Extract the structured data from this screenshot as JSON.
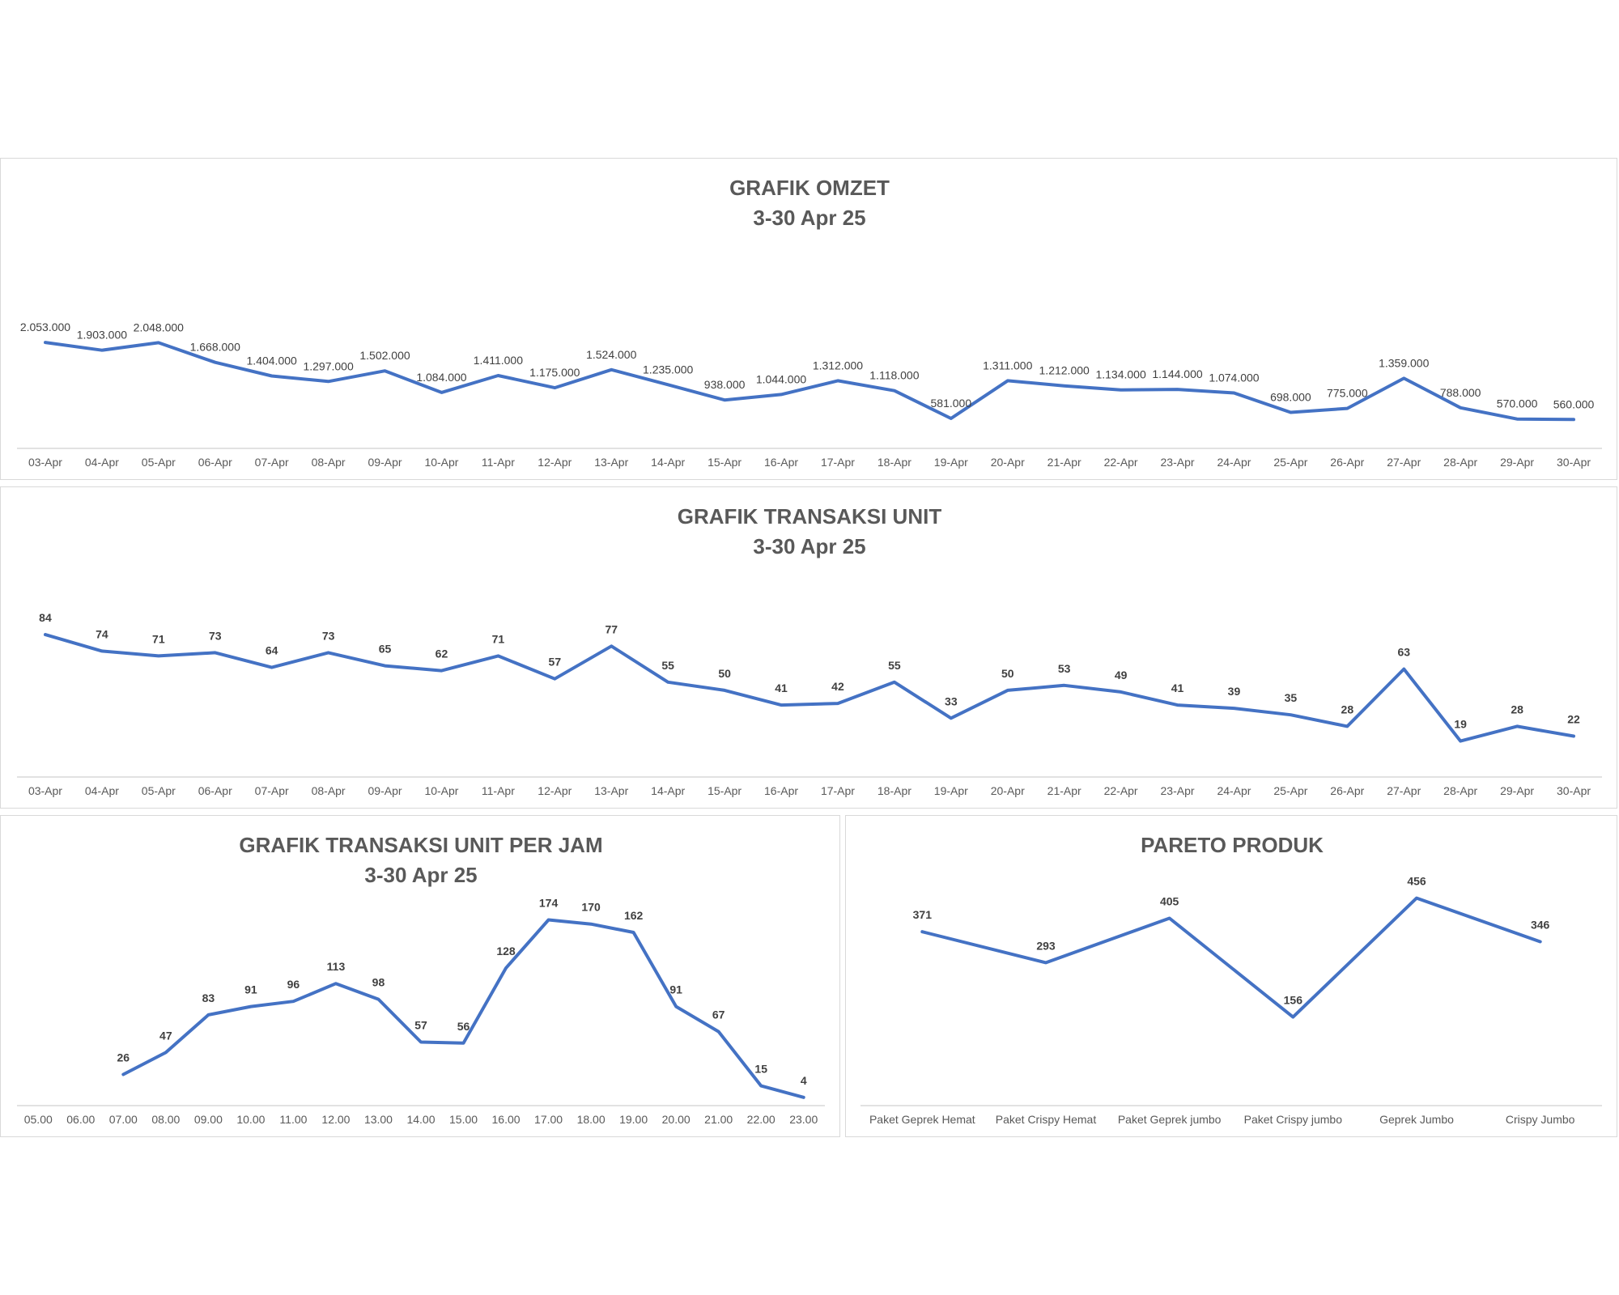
{
  "chart_data": [
    {
      "id": "omzet",
      "type": "line",
      "title": "GRAFIK OMZET",
      "subtitle": "3-30 Apr 25",
      "categories": [
        "03-Apr",
        "04-Apr",
        "05-Apr",
        "06-Apr",
        "07-Apr",
        "08-Apr",
        "09-Apr",
        "10-Apr",
        "11-Apr",
        "12-Apr",
        "13-Apr",
        "14-Apr",
        "15-Apr",
        "16-Apr",
        "17-Apr",
        "18-Apr",
        "19-Apr",
        "20-Apr",
        "21-Apr",
        "22-Apr",
        "23-Apr",
        "24-Apr",
        "25-Apr",
        "26-Apr",
        "27-Apr",
        "28-Apr",
        "29-Apr",
        "30-Apr"
      ],
      "values": [
        2053000,
        1903000,
        2048000,
        1668000,
        1404000,
        1297000,
        1502000,
        1084000,
        1411000,
        1175000,
        1524000,
        1235000,
        938000,
        1044000,
        1312000,
        1118000,
        581000,
        1311000,
        1212000,
        1134000,
        1144000,
        1074000,
        698000,
        775000,
        1359000,
        788000,
        570000,
        560000
      ],
      "data_labels": [
        "2.053.000",
        "1.903.000",
        "2.048.000",
        "1.668.000",
        "1.404.000",
        "1.297.000",
        "1.502.000",
        "1.084.000",
        "1.411.000",
        "1.175.000",
        "1.524.000",
        "1.235.000",
        "938.000",
        "1.044.000",
        "1.312.000",
        "1.118.000",
        "581.000",
        "1.311.000",
        "1.212.000",
        "1.134.000",
        "1.144.000",
        "1.074.000",
        "698.000",
        "775.000",
        "1.359.000",
        "788.000",
        "570.000",
        "560.000"
      ],
      "ylim": [
        0,
        2400000
      ],
      "label_bold": false,
      "line_color": "#4472c4",
      "grid": false
    },
    {
      "id": "transaksi",
      "type": "line",
      "title": "GRAFIK TRANSAKSI UNIT",
      "subtitle": "3-30 Apr 25",
      "categories": [
        "03-Apr",
        "04-Apr",
        "05-Apr",
        "06-Apr",
        "07-Apr",
        "08-Apr",
        "09-Apr",
        "10-Apr",
        "11-Apr",
        "12-Apr",
        "13-Apr",
        "14-Apr",
        "15-Apr",
        "16-Apr",
        "17-Apr",
        "18-Apr",
        "19-Apr",
        "20-Apr",
        "21-Apr",
        "22-Apr",
        "23-Apr",
        "24-Apr",
        "25-Apr",
        "26-Apr",
        "27-Apr",
        "28-Apr",
        "29-Apr",
        "30-Apr"
      ],
      "values": [
        84,
        74,
        71,
        73,
        64,
        73,
        65,
        62,
        71,
        57,
        77,
        55,
        50,
        41,
        42,
        55,
        33,
        50,
        53,
        49,
        41,
        39,
        35,
        28,
        63,
        19,
        28,
        22
      ],
      "data_labels": [
        "84",
        "74",
        "71",
        "73",
        "64",
        "73",
        "65",
        "62",
        "71",
        "57",
        "77",
        "55",
        "50",
        "41",
        "42",
        "55",
        "33",
        "50",
        "53",
        "49",
        "41",
        "39",
        "35",
        "28",
        "63",
        "19",
        "28",
        "22"
      ],
      "ylim": [
        0,
        90
      ],
      "label_bold": true,
      "line_color": "#4472c4",
      "grid": false
    },
    {
      "id": "perjam",
      "type": "line",
      "title": "GRAFIK TRANSAKSI UNIT PER JAM",
      "subtitle": "3-30 Apr 25",
      "categories": [
        "05.00",
        "06.00",
        "07.00",
        "08.00",
        "09.00",
        "10.00",
        "11.00",
        "12.00",
        "13.00",
        "14.00",
        "15.00",
        "16.00",
        "17.00",
        "18.00",
        "19.00",
        "20.00",
        "21.00",
        "22.00",
        "23.00"
      ],
      "values": [
        null,
        null,
        26,
        47,
        83,
        91,
        96,
        113,
        98,
        57,
        56,
        128,
        174,
        170,
        162,
        91,
        67,
        15,
        4
      ],
      "data_labels": [
        "",
        "",
        "26",
        "47",
        "83",
        "91",
        "96",
        "113",
        "98",
        "57",
        "56",
        "128",
        "174",
        "170",
        "162",
        "91",
        "67",
        "15",
        "4"
      ],
      "ylim": [
        0,
        200
      ],
      "label_bold": true,
      "line_color": "#4472c4",
      "grid": false
    },
    {
      "id": "pareto",
      "type": "line",
      "title": "PARETO PRODUK",
      "subtitle": "",
      "categories": [
        "Paket Geprek Hemat",
        "Paket Crispy Hemat",
        "Paket Geprek jumbo",
        "Paket Crispy jumbo",
        "Geprek Jumbo",
        "Crispy Jumbo"
      ],
      "values": [
        371,
        293,
        405,
        156,
        456,
        346
      ],
      "data_labels": [
        "371",
        "293",
        "405",
        "156",
        "456",
        "346"
      ],
      "ylim": [
        0,
        500
      ],
      "label_bold": true,
      "line_color": "#4472c4",
      "grid": false
    }
  ]
}
